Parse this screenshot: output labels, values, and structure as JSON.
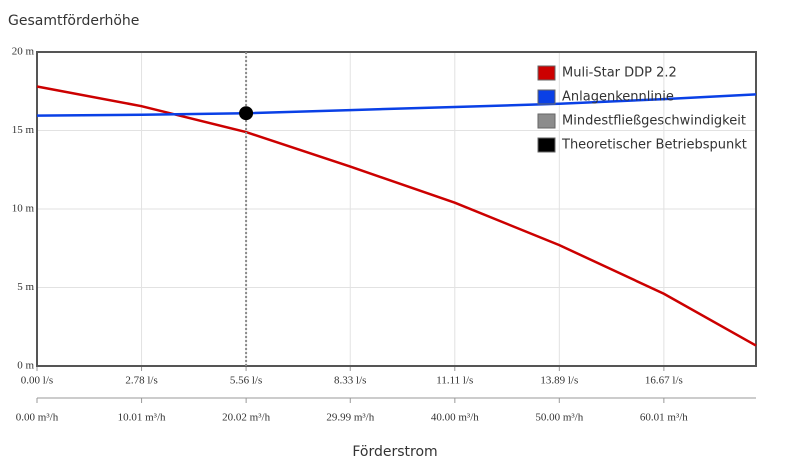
{
  "chart_data": {
    "type": "line",
    "title": "Gesamtförderhöhe",
    "x_label": "Förderstrom",
    "xlim": [
      0,
      19.12
    ],
    "xticks": [
      {
        "value": 0,
        "label": "0.00 l/s"
      },
      {
        "value": 2.78,
        "label": "2.78 l/s"
      },
      {
        "value": 5.56,
        "label": "5.56 l/s"
      },
      {
        "value": 8.33,
        "label": "8.33 l/s"
      },
      {
        "value": 11.11,
        "label": "11.11 l/s"
      },
      {
        "value": 13.89,
        "label": "13.89 l/s"
      },
      {
        "value": 16.67,
        "label": "16.67 l/s"
      }
    ],
    "x2lim": [
      0,
      68.83
    ],
    "x2ticks": [
      {
        "value": 0,
        "label": "0.00 m³/h"
      },
      {
        "value": 10.01,
        "label": "10.01 m³/h"
      },
      {
        "value": 20.02,
        "label": "20.02 m³/h"
      },
      {
        "value": 29.99,
        "label": "29.99 m³/h"
      },
      {
        "value": 40.0,
        "label": "40.00 m³/h"
      },
      {
        "value": 50.0,
        "label": "50.00 m³/h"
      },
      {
        "value": 60.01,
        "label": "60.01 m³/h"
      }
    ],
    "ylim": [
      0,
      20
    ],
    "yticks": [
      {
        "value": 0,
        "label": "0 m"
      },
      {
        "value": 5,
        "label": "5 m"
      },
      {
        "value": 10,
        "label": "10 m"
      },
      {
        "value": 15,
        "label": "15 m"
      },
      {
        "value": 20,
        "label": "20 m"
      }
    ],
    "grid": true,
    "legend": "top-right",
    "series": [
      {
        "name": "Muli-Star DDP 2.2",
        "color": "#cc0000",
        "x": [
          0,
          2.78,
          5.56,
          8.33,
          11.11,
          13.89,
          16.67,
          19.12
        ],
        "values": [
          17.8,
          16.55,
          14.9,
          12.7,
          10.4,
          7.7,
          4.6,
          1.3
        ]
      },
      {
        "name": "Anlagenkennlinie",
        "color": "#0a40e6",
        "x": [
          0,
          2.78,
          5.56,
          8.33,
          11.11,
          13.89,
          16.67,
          19.12
        ],
        "values": [
          15.95,
          16.0,
          16.1,
          16.3,
          16.5,
          16.7,
          17.0,
          17.3
        ]
      },
      {
        "name": "Mindestfließgeschwindigkeit",
        "color": "#8c8c8c",
        "x": [
          5.56,
          5.56
        ],
        "values": [
          0,
          20
        ]
      },
      {
        "name": "Theoretischer Betriebspunkt",
        "color": "#000000",
        "x": [
          5.56
        ],
        "values": [
          16.1
        ]
      }
    ]
  }
}
